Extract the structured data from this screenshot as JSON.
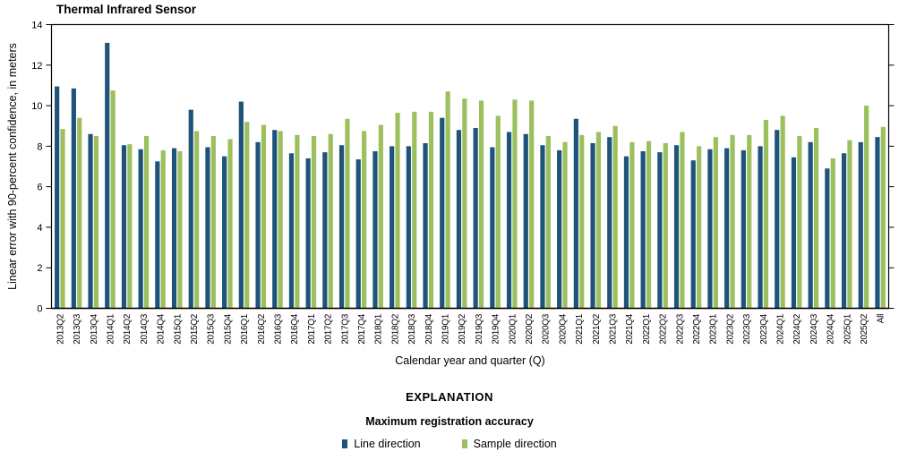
{
  "chart": {
    "title": "Thermal Infrared Sensor",
    "ylabel": "Linear error with 90-percent confidence, in meters",
    "xlabel": "Calendar year and quarter (Q)"
  },
  "explanation": {
    "heading": "EXPLANATION",
    "subheading": "Maximum registration accuracy",
    "legend": [
      {
        "label": "Line direction",
        "color": "#1e537a"
      },
      {
        "label": "Sample direction",
        "color": "#9dc05e"
      }
    ]
  },
  "chart_data": {
    "type": "bar",
    "title": "Thermal Infrared Sensor",
    "xlabel": "Calendar year and quarter (Q)",
    "ylabel": "Linear error with 90-percent confidence, in meters",
    "ylim": [
      0,
      14
    ],
    "yticks": [
      0,
      2,
      4,
      6,
      8,
      10,
      12,
      14
    ],
    "grid": false,
    "legend_position": "bottom",
    "categories": [
      "2013Q2",
      "2013Q3",
      "2013Q4",
      "2014Q1",
      "2014Q2",
      "2014Q3",
      "2014Q4",
      "2015Q1",
      "2015Q2",
      "2015Q3",
      "2015Q4",
      "2016Q1",
      "2016Q2",
      "2016Q3",
      "2016Q4",
      "2017Q1",
      "2017Q2",
      "2017Q3",
      "2017Q4",
      "2018Q1",
      "2018Q2",
      "2018Q3",
      "2018Q4",
      "2019Q1",
      "2019Q2",
      "2019Q3",
      "2019Q4",
      "2020Q1",
      "2020Q2",
      "2020Q3",
      "2020Q4",
      "2021Q1",
      "2021Q2",
      "2021Q3",
      "2021Q4",
      "2022Q1",
      "2022Q2",
      "2022Q3",
      "2022Q4",
      "2023Q1",
      "2023Q2",
      "2023Q3",
      "2023Q4",
      "2024Q1",
      "2024Q2",
      "2024Q3",
      "2024Q4",
      "2025Q1",
      "2025Q2",
      "All"
    ],
    "series": [
      {
        "name": "Line direction",
        "color": "#1e537a",
        "values": [
          10.95,
          10.85,
          8.6,
          13.1,
          8.05,
          7.85,
          7.25,
          7.9,
          9.8,
          7.95,
          7.5,
          10.2,
          8.2,
          8.8,
          7.65,
          7.4,
          7.7,
          8.05,
          7.35,
          7.75,
          8.0,
          8.0,
          8.15,
          9.4,
          8.8,
          8.9,
          7.95,
          8.7,
          8.6,
          8.05,
          7.8,
          9.35,
          8.15,
          8.45,
          7.5,
          7.75,
          7.7,
          8.05,
          7.3,
          7.85,
          7.9,
          7.8,
          8.0,
          8.8,
          7.45,
          8.2,
          6.9,
          7.65,
          8.2,
          8.45
        ]
      },
      {
        "name": "Sample direction",
        "color": "#9dc05e",
        "values": [
          8.85,
          9.4,
          8.5,
          10.75,
          8.1,
          8.5,
          7.8,
          7.75,
          8.75,
          8.5,
          8.35,
          9.2,
          9.05,
          8.75,
          8.55,
          8.5,
          8.6,
          9.35,
          8.75,
          9.05,
          9.65,
          9.7,
          9.7,
          10.7,
          10.35,
          10.25,
          9.5,
          10.3,
          10.25,
          8.5,
          8.2,
          8.55,
          8.7,
          9.0,
          8.2,
          8.25,
          8.15,
          8.7,
          8.0,
          8.45,
          8.55,
          8.55,
          9.3,
          9.5,
          8.5,
          8.9,
          7.4,
          8.3,
          10.0,
          8.95
        ]
      }
    ]
  }
}
